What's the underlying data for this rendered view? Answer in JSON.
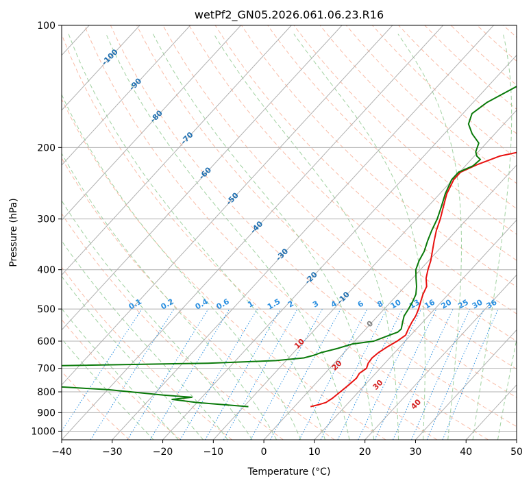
{
  "chart_data": {
    "type": "line",
    "title": "wetPf2_GN05.2026.061.06.23.R16",
    "xlabel": "Temperature (°C)",
    "ylabel": "Pressure (hPa)",
    "xlim": [
      -40,
      50
    ],
    "ylim": [
      1050,
      100
    ],
    "x_ticks": [
      -40,
      -30,
      -20,
      -10,
      0,
      10,
      20,
      30,
      40,
      50
    ],
    "x_tick_labels": [
      "−40",
      "−30",
      "−20",
      "−10",
      "0",
      "10",
      "20",
      "30",
      "40",
      "50"
    ],
    "y_ticks": [
      100,
      200,
      300,
      400,
      500,
      600,
      700,
      800,
      900,
      1000
    ],
    "y_tick_labels": [
      "100",
      "200",
      "300",
      "400",
      "500",
      "600",
      "700",
      "800",
      "900",
      "1000"
    ],
    "colors": {
      "temperature": "#e8110f",
      "dewpoint": "#0a7a0a",
      "isotherm": "#b0b0b0",
      "isobar": "#b0b0b0",
      "dry_adiabat": "#f7a58a",
      "moist_adiabat": "#8fc98f",
      "mixing_ratio": "#2a8fe0",
      "isotherm_label": "#1f6fb0",
      "mixing_label": "#2a8fe0",
      "moist_label": "#d42020",
      "zero_label": "#808080"
    },
    "series": [
      {
        "name": "Temperature",
        "points": [
          [
            3.2,
            870
          ],
          [
            4.5,
            860
          ],
          [
            5.5,
            850
          ],
          [
            6.0,
            830
          ],
          [
            6.4,
            800
          ],
          [
            6.8,
            770
          ],
          [
            7.1,
            740
          ],
          [
            6.8,
            720
          ],
          [
            7.3,
            700
          ],
          [
            6.7,
            680
          ],
          [
            6.5,
            660
          ],
          [
            6.8,
            640
          ],
          [
            7.5,
            620
          ],
          [
            8.4,
            600
          ],
          [
            9.0,
            580
          ],
          [
            8.4,
            560
          ],
          [
            7.9,
            540
          ],
          [
            7.5,
            520
          ],
          [
            6.8,
            500
          ],
          [
            5.9,
            480
          ],
          [
            5.0,
            460
          ],
          [
            4.3,
            440
          ],
          [
            2.7,
            420
          ],
          [
            1.5,
            400
          ],
          [
            0.4,
            380
          ],
          [
            -1.0,
            360
          ],
          [
            -2.5,
            340
          ],
          [
            -4.0,
            320
          ],
          [
            -5.3,
            300
          ],
          [
            -6.9,
            280
          ],
          [
            -8.6,
            260
          ],
          [
            -9.8,
            240
          ],
          [
            -9.8,
            230
          ],
          [
            -7.8,
            220
          ],
          [
            -5.0,
            210
          ],
          [
            -1.8,
            205
          ],
          [
            4.0,
            200
          ],
          [
            10.0,
            190
          ],
          [
            13.5,
            180
          ],
          [
            14.8,
            175
          ],
          [
            15.8,
            170
          ],
          [
            17.5,
            160
          ],
          [
            19.0,
            150
          ],
          [
            21.0,
            140
          ],
          [
            23.5,
            130
          ],
          [
            26.5,
            120
          ],
          [
            29.0,
            110
          ],
          [
            30.0,
            105
          ],
          [
            31.0,
            100
          ]
        ]
      },
      {
        "name": "Dewpoint",
        "points": [
          [
            -9.1,
            870
          ],
          [
            -20.0,
            850
          ],
          [
            -25.5,
            835
          ],
          [
            -22.0,
            825
          ],
          [
            -28.0,
            815
          ],
          [
            -40.0,
            790
          ],
          [
            -48.0,
            780
          ],
          [
            -80.0,
            740
          ],
          [
            -70.0,
            705
          ],
          [
            -55.0,
            690
          ],
          [
            -25.0,
            680
          ],
          [
            -12.0,
            670
          ],
          [
            -7.0,
            660
          ],
          [
            -5.5,
            650
          ],
          [
            -4.5,
            640
          ],
          [
            -2.0,
            625
          ],
          [
            0.0,
            610
          ],
          [
            3.8,
            600
          ],
          [
            5.8,
            580
          ],
          [
            6.9,
            570
          ],
          [
            7.0,
            560
          ],
          [
            6.1,
            540
          ],
          [
            5.2,
            520
          ],
          [
            4.8,
            500
          ],
          [
            4.3,
            480
          ],
          [
            3.6,
            460
          ],
          [
            2.3,
            440
          ],
          [
            0.7,
            420
          ],
          [
            -0.9,
            400
          ],
          [
            -1.9,
            380
          ],
          [
            -2.6,
            360
          ],
          [
            -3.8,
            340
          ],
          [
            -4.9,
            320
          ],
          [
            -5.9,
            300
          ],
          [
            -7.3,
            280
          ],
          [
            -8.9,
            260
          ],
          [
            -10.2,
            240
          ],
          [
            -10.2,
            230
          ],
          [
            -8.5,
            222
          ],
          [
            -8.2,
            214
          ],
          [
            -9.5,
            210
          ],
          [
            -10.5,
            205
          ],
          [
            -11.5,
            195
          ],
          [
            -14.5,
            185
          ],
          [
            -17.0,
            175
          ],
          [
            -18.2,
            165
          ],
          [
            -17.3,
            155
          ],
          [
            -14.0,
            140
          ],
          [
            -10.0,
            125
          ],
          [
            -6.0,
            110
          ],
          [
            -3.5,
            100
          ]
        ]
      }
    ],
    "isotherm_labels": [
      "-100",
      "-90",
      "-80",
      "-70",
      "-60",
      "-50",
      "-40",
      "-30",
      "-20",
      "-10",
      "0"
    ],
    "mixing_ratio_labels": [
      "0.1",
      "0.2",
      "0.4",
      "0.6",
      "1",
      "1.5",
      "2",
      "3",
      "4",
      "6",
      "8",
      "10",
      "13",
      "16",
      "20",
      "25",
      "30",
      "36"
    ],
    "moist_adiabat_labels": [
      "10",
      "20",
      "30",
      "40"
    ]
  }
}
